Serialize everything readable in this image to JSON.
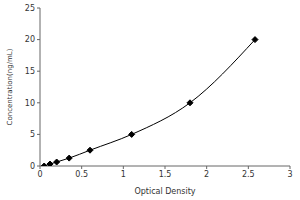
{
  "chart_data": {
    "type": "line",
    "x_label": "Optical Density",
    "y_label": "Concentration(ng/mL)",
    "x": [
      0.05,
      0.12,
      0.2,
      0.35,
      0.6,
      1.1,
      1.8,
      2.58
    ],
    "values": [
      0,
      0.31,
      0.63,
      1.25,
      2.5,
      5,
      10,
      20
    ],
    "color": "#000000",
    "marker": "diamond",
    "xlim": [
      0,
      3
    ],
    "xticks": [
      0,
      0.5,
      1,
      1.5,
      2,
      2.5,
      3
    ],
    "ylim": [
      0,
      25
    ],
    "yticks": [
      0,
      5,
      10,
      15,
      20,
      25
    ],
    "grid": false
  }
}
